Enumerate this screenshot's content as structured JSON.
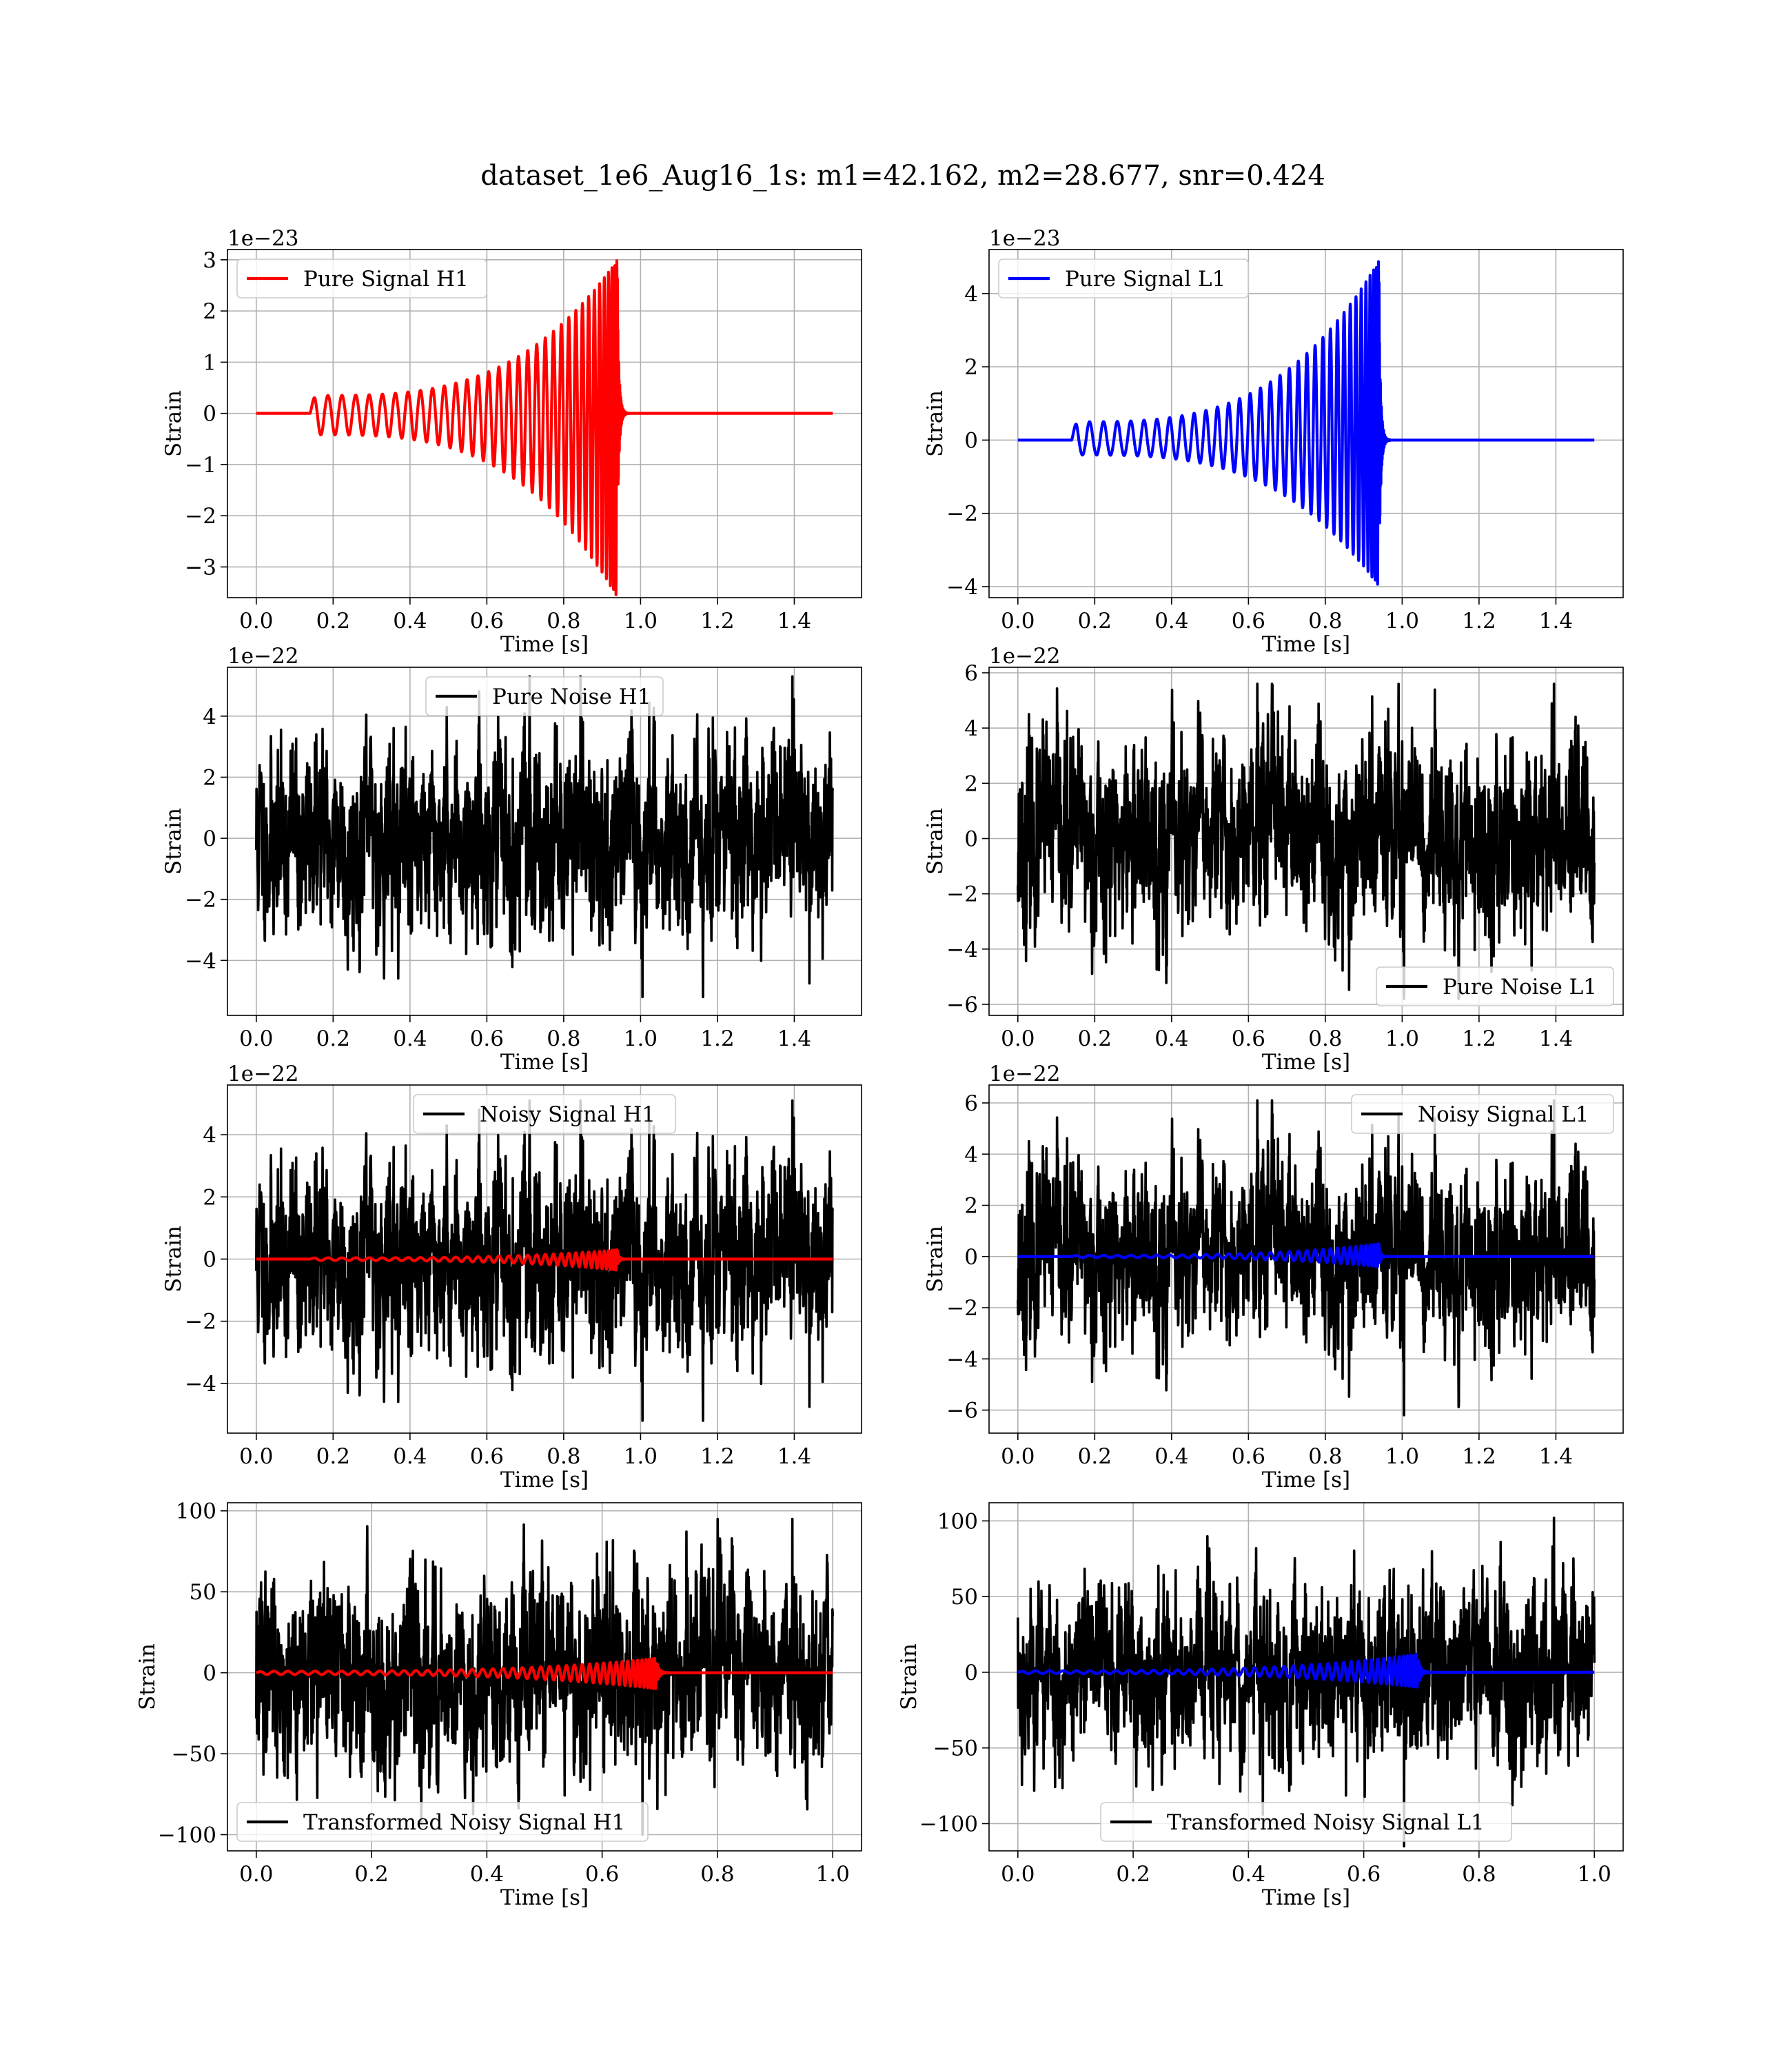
{
  "figure": {
    "title": "dataset_1e6_Aug16_1s: m1=42.162, m2=28.677, snr=0.424"
  },
  "chart_data": [
    {
      "id": "pure-signal-h1",
      "type": "line",
      "ylabel": "Strain",
      "xlabel": "Time [s]",
      "offset_text": "1e−23",
      "xlim": [
        -0.075,
        1.575
      ],
      "ylim": [
        -3.6,
        3.2
      ],
      "xticks": [
        0.0,
        0.2,
        0.4,
        0.6,
        0.8,
        1.0,
        1.2,
        1.4
      ],
      "xtick_labels": [
        "0.0",
        "0.2",
        "0.4",
        "0.6",
        "0.8",
        "1.0",
        "1.2",
        "1.4"
      ],
      "yticks": [
        -3,
        -2,
        -1,
        0,
        1,
        2,
        3
      ],
      "ytick_labels": [
        "−3",
        "−2",
        "−1",
        "0",
        "1",
        "2",
        "3"
      ],
      "legend_position": "upper left",
      "grid": true,
      "series": [
        {
          "name": "Pure Signal H1",
          "color": "#ff0000",
          "kind": "chirp",
          "t_start": 0.14,
          "t_merge": 0.94,
          "t_end": 1.5,
          "amp_start": 0.35,
          "amp_peak": 3.0,
          "amp_min": -3.6,
          "cycles": 34
        }
      ]
    },
    {
      "id": "pure-signal-l1",
      "type": "line",
      "ylabel": "Strain",
      "xlabel": "Time [s]",
      "offset_text": "1e−23",
      "xlim": [
        -0.075,
        1.575
      ],
      "ylim": [
        -4.3,
        5.2
      ],
      "xticks": [
        0.0,
        0.2,
        0.4,
        0.6,
        0.8,
        1.0,
        1.2,
        1.4
      ],
      "xtick_labels": [
        "0.0",
        "0.2",
        "0.4",
        "0.6",
        "0.8",
        "1.0",
        "1.2",
        "1.4"
      ],
      "yticks": [
        -4,
        -2,
        0,
        2,
        4
      ],
      "ytick_labels": [
        "−4",
        "−2",
        "0",
        "2",
        "4"
      ],
      "legend_position": "upper left",
      "grid": true,
      "series": [
        {
          "name": "Pure Signal L1",
          "color": "#0000ff",
          "kind": "chirp",
          "t_start": 0.14,
          "t_merge": 0.94,
          "t_end": 1.5,
          "amp_start": 0.5,
          "amp_peak": 4.9,
          "amp_min": -4.0,
          "cycles": 34
        }
      ]
    },
    {
      "id": "pure-noise-h1",
      "type": "line",
      "ylabel": "Strain",
      "xlabel": "Time [s]",
      "offset_text": "1e−22",
      "xlim": [
        -0.075,
        1.575
      ],
      "ylim": [
        -5.8,
        5.6
      ],
      "xticks": [
        0.0,
        0.2,
        0.4,
        0.6,
        0.8,
        1.0,
        1.2,
        1.4
      ],
      "xtick_labels": [
        "0.0",
        "0.2",
        "0.4",
        "0.6",
        "0.8",
        "1.0",
        "1.2",
        "1.4"
      ],
      "yticks": [
        -4,
        -2,
        0,
        2,
        4
      ],
      "ytick_labels": [
        "−4",
        "−2",
        "0",
        "2",
        "4"
      ],
      "legend_position": "upper center",
      "grid": true,
      "series": [
        {
          "name": "Pure Noise H1",
          "color": "#000000",
          "kind": "noise",
          "t_start": 0.0,
          "t_end": 1.5,
          "sigma": 1.6,
          "peak": 5.3,
          "trough": -5.2,
          "seed": 11
        }
      ]
    },
    {
      "id": "pure-noise-l1",
      "type": "line",
      "ylabel": "Strain",
      "xlabel": "Time [s]",
      "offset_text": "1e−22",
      "xlim": [
        -0.075,
        1.575
      ],
      "ylim": [
        -6.4,
        6.2
      ],
      "xticks": [
        0.0,
        0.2,
        0.4,
        0.6,
        0.8,
        1.0,
        1.2,
        1.4
      ],
      "xtick_labels": [
        "0.0",
        "0.2",
        "0.4",
        "0.6",
        "0.8",
        "1.0",
        "1.2",
        "1.4"
      ],
      "yticks": [
        -6,
        -4,
        -2,
        0,
        2,
        4,
        6
      ],
      "ytick_labels": [
        "−6",
        "−4",
        "−2",
        "0",
        "2",
        "4",
        "6"
      ],
      "legend_position": "lower right",
      "grid": true,
      "series": [
        {
          "name": "Pure Noise L1",
          "color": "#000000",
          "kind": "noise",
          "t_start": 0.0,
          "t_end": 1.5,
          "sigma": 1.8,
          "peak": 5.6,
          "trough": -5.8,
          "seed": 23
        }
      ]
    },
    {
      "id": "noisy-signal-h1",
      "type": "line",
      "ylabel": "Strain",
      "xlabel": "Time [s]",
      "offset_text": "1e−22",
      "xlim": [
        -0.075,
        1.575
      ],
      "ylim": [
        -5.6,
        5.6
      ],
      "xticks": [
        0.0,
        0.2,
        0.4,
        0.6,
        0.8,
        1.0,
        1.2,
        1.4
      ],
      "xtick_labels": [
        "0.0",
        "0.2",
        "0.4",
        "0.6",
        "0.8",
        "1.0",
        "1.2",
        "1.4"
      ],
      "yticks": [
        -4,
        -2,
        0,
        2,
        4
      ],
      "ytick_labels": [
        "−4",
        "−2",
        "0",
        "2",
        "4"
      ],
      "legend_position": "upper center",
      "grid": true,
      "series": [
        {
          "name": "Noisy Signal H1",
          "color": "#000000",
          "kind": "noise",
          "t_start": 0.0,
          "t_end": 1.5,
          "sigma": 1.6,
          "peak": 5.1,
          "trough": -5.2,
          "seed": 11
        },
        {
          "name": "",
          "color": "#ff0000",
          "kind": "chirp",
          "t_start": 0.14,
          "t_merge": 0.94,
          "t_end": 1.5,
          "amp_start": 0.04,
          "amp_peak": 0.3,
          "amp_min": -0.36,
          "cycles": 34
        }
      ]
    },
    {
      "id": "noisy-signal-l1",
      "type": "line",
      "ylabel": "Strain",
      "xlabel": "Time [s]",
      "offset_text": "1e−22",
      "xlim": [
        -0.075,
        1.575
      ],
      "ylim": [
        -6.9,
        6.7
      ],
      "xticks": [
        0.0,
        0.2,
        0.4,
        0.6,
        0.8,
        1.0,
        1.2,
        1.4
      ],
      "xtick_labels": [
        "0.0",
        "0.2",
        "0.4",
        "0.6",
        "0.8",
        "1.0",
        "1.2",
        "1.4"
      ],
      "yticks": [
        -6,
        -4,
        -2,
        0,
        2,
        4,
        6
      ],
      "ytick_labels": [
        "−6",
        "−4",
        "−2",
        "0",
        "2",
        "4",
        "6"
      ],
      "legend_position": "upper right",
      "grid": true,
      "series": [
        {
          "name": "Noisy Signal L1",
          "color": "#000000",
          "kind": "noise",
          "t_start": 0.0,
          "t_end": 1.5,
          "sigma": 1.8,
          "peak": 6.1,
          "trough": -6.2,
          "seed": 23
        },
        {
          "name": "",
          "color": "#0000ff",
          "kind": "chirp",
          "t_start": 0.14,
          "t_merge": 0.94,
          "t_end": 1.5,
          "amp_start": 0.05,
          "amp_peak": 0.5,
          "amp_min": -0.4,
          "cycles": 34
        }
      ]
    },
    {
      "id": "transformed-noisy-signal-h1",
      "type": "line",
      "ylabel": "Strain",
      "xlabel": "Time [s]",
      "offset_text": "",
      "xlim": [
        -0.05,
        1.05
      ],
      "ylim": [
        -110,
        105
      ],
      "xticks": [
        0.0,
        0.2,
        0.4,
        0.6,
        0.8,
        1.0
      ],
      "xtick_labels": [
        "0.0",
        "0.2",
        "0.4",
        "0.6",
        "0.8",
        "1.0"
      ],
      "yticks": [
        -100,
        -50,
        0,
        50,
        100
      ],
      "ytick_labels": [
        "−100",
        "−50",
        "0",
        "50",
        "100"
      ],
      "legend_position": "lower left",
      "grid": true,
      "series": [
        {
          "name": "Transformed Noisy Signal H1",
          "color": "#000000",
          "kind": "noise",
          "t_start": 0.0,
          "t_end": 1.0,
          "sigma": 30,
          "peak": 95,
          "trough": -100,
          "seed": 37
        },
        {
          "name": "",
          "color": "#ff0000",
          "kind": "chirp",
          "t_start": 0.0,
          "t_merge": 0.695,
          "t_end": 1.0,
          "amp_start": 1.0,
          "amp_peak": 9.0,
          "amp_min": -10.0,
          "cycles": 45
        }
      ]
    },
    {
      "id": "transformed-noisy-signal-l1",
      "type": "line",
      "ylabel": "Strain",
      "xlabel": "Time [s]",
      "offset_text": "",
      "xlim": [
        -0.05,
        1.05
      ],
      "ylim": [
        -118,
        112
      ],
      "xticks": [
        0.0,
        0.2,
        0.4,
        0.6,
        0.8,
        1.0
      ],
      "xtick_labels": [
        "0.0",
        "0.2",
        "0.4",
        "0.6",
        "0.8",
        "1.0"
      ],
      "yticks": [
        -100,
        -50,
        0,
        50,
        100
      ],
      "ytick_labels": [
        "−100",
        "−50",
        "0",
        "50",
        "100"
      ],
      "legend_position": "lower center",
      "grid": true,
      "series": [
        {
          "name": "Transformed Noisy Signal L1",
          "color": "#000000",
          "kind": "noise",
          "t_start": 0.0,
          "t_end": 1.0,
          "sigma": 30,
          "peak": 102,
          "trough": -115,
          "seed": 53
        },
        {
          "name": "",
          "color": "#0000ff",
          "kind": "chirp",
          "t_start": 0.0,
          "t_merge": 0.695,
          "t_end": 1.0,
          "amp_start": 1.0,
          "amp_peak": 12.0,
          "amp_min": -10.0,
          "cycles": 45
        }
      ]
    }
  ]
}
